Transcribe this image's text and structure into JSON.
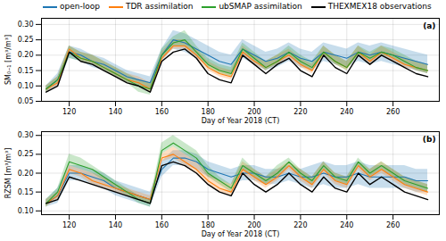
{
  "chart_data": [
    {
      "type": "line",
      "title": "(a)",
      "legend": "top-left",
      "grid": true,
      "x_label": "Day of Year 2018 (CT)",
      "y_label": "SM₀₋₁ [m³/m³]",
      "xlim": [
        108,
        280
      ],
      "xticks": [
        120,
        140,
        160,
        180,
        200,
        220,
        240,
        260
      ],
      "ylim": [
        0.05,
        0.32
      ],
      "yticks": [
        {
          "value": 0.05,
          "label": "0.05"
        },
        {
          "value": 0.1,
          "label": "0.10"
        },
        {
          "value": 0.15,
          "label": "0.15"
        },
        {
          "value": 0.2,
          "label": "0.20"
        },
        {
          "value": 0.25,
          "label": "0.25"
        },
        {
          "value": 0.3,
          "label": "0.30"
        }
      ],
      "x": [
        110,
        115,
        120,
        125,
        130,
        135,
        140,
        145,
        150,
        155,
        160,
        165,
        170,
        175,
        180,
        185,
        190,
        195,
        200,
        205,
        210,
        215,
        220,
        225,
        230,
        235,
        240,
        245,
        250,
        255,
        260,
        265,
        270,
        275
      ],
      "series": [
        {
          "name": "open-loop",
          "color": "#1f77b4",
          "values": [
            0.09,
            0.12,
            0.21,
            0.2,
            0.18,
            0.17,
            0.15,
            0.13,
            0.12,
            0.11,
            0.2,
            0.25,
            0.24,
            0.22,
            0.2,
            0.18,
            0.17,
            0.22,
            0.2,
            0.18,
            0.19,
            0.21,
            0.19,
            0.18,
            0.21,
            0.2,
            0.19,
            0.21,
            0.2,
            0.21,
            0.2,
            0.19,
            0.18,
            0.17
          ],
          "lower": [
            0.08,
            0.1,
            0.19,
            0.18,
            0.16,
            0.15,
            0.13,
            0.11,
            0.1,
            0.09,
            0.18,
            0.22,
            0.21,
            0.19,
            0.17,
            0.15,
            0.14,
            0.19,
            0.17,
            0.15,
            0.16,
            0.18,
            0.16,
            0.15,
            0.18,
            0.17,
            0.16,
            0.18,
            0.17,
            0.18,
            0.17,
            0.16,
            0.15,
            0.14
          ],
          "upper": [
            0.1,
            0.14,
            0.23,
            0.22,
            0.2,
            0.19,
            0.17,
            0.15,
            0.14,
            0.13,
            0.22,
            0.28,
            0.27,
            0.25,
            0.23,
            0.21,
            0.2,
            0.25,
            0.23,
            0.21,
            0.22,
            0.24,
            0.22,
            0.21,
            0.24,
            0.23,
            0.22,
            0.24,
            0.23,
            0.24,
            0.23,
            0.22,
            0.21,
            0.2
          ]
        },
        {
          "name": "TDR assimilation",
          "color": "#ff7f0e",
          "values": [
            0.09,
            0.11,
            0.22,
            0.19,
            0.18,
            0.16,
            0.14,
            0.12,
            0.11,
            0.09,
            0.19,
            0.23,
            0.23,
            0.2,
            0.16,
            0.14,
            0.13,
            0.21,
            0.18,
            0.16,
            0.18,
            0.2,
            0.17,
            0.15,
            0.21,
            0.18,
            0.16,
            0.21,
            0.18,
            0.21,
            0.19,
            0.17,
            0.16,
            0.15
          ],
          "lower": [
            0.08,
            0.1,
            0.21,
            0.18,
            0.17,
            0.15,
            0.13,
            0.11,
            0.1,
            0.08,
            0.18,
            0.22,
            0.22,
            0.19,
            0.15,
            0.13,
            0.12,
            0.2,
            0.17,
            0.15,
            0.17,
            0.19,
            0.16,
            0.14,
            0.2,
            0.17,
            0.15,
            0.2,
            0.17,
            0.2,
            0.18,
            0.16,
            0.15,
            0.14
          ],
          "upper": [
            0.1,
            0.13,
            0.23,
            0.21,
            0.2,
            0.18,
            0.16,
            0.14,
            0.13,
            0.11,
            0.21,
            0.25,
            0.25,
            0.22,
            0.18,
            0.16,
            0.15,
            0.23,
            0.2,
            0.18,
            0.2,
            0.22,
            0.19,
            0.17,
            0.23,
            0.2,
            0.18,
            0.23,
            0.2,
            0.23,
            0.21,
            0.19,
            0.18,
            0.17
          ]
        },
        {
          "name": "ubSMAP assimilation",
          "color": "#2ca02c",
          "values": [
            0.09,
            0.12,
            0.21,
            0.19,
            0.18,
            0.16,
            0.14,
            0.12,
            0.1,
            0.09,
            0.2,
            0.24,
            0.25,
            0.21,
            0.17,
            0.15,
            0.14,
            0.22,
            0.19,
            0.16,
            0.18,
            0.21,
            0.18,
            0.16,
            0.21,
            0.18,
            0.16,
            0.21,
            0.19,
            0.21,
            0.2,
            0.18,
            0.16,
            0.15
          ],
          "lower": [
            0.08,
            0.11,
            0.19,
            0.18,
            0.17,
            0.15,
            0.13,
            0.11,
            0.08,
            0.07,
            0.19,
            0.23,
            0.23,
            0.2,
            0.16,
            0.14,
            0.13,
            0.21,
            0.18,
            0.15,
            0.17,
            0.2,
            0.17,
            0.15,
            0.2,
            0.17,
            0.15,
            0.2,
            0.18,
            0.2,
            0.19,
            0.17,
            0.15,
            0.14
          ],
          "upper": [
            0.1,
            0.13,
            0.23,
            0.21,
            0.2,
            0.18,
            0.16,
            0.14,
            0.12,
            0.11,
            0.22,
            0.26,
            0.28,
            0.23,
            0.19,
            0.17,
            0.16,
            0.24,
            0.21,
            0.18,
            0.2,
            0.23,
            0.2,
            0.18,
            0.23,
            0.2,
            0.18,
            0.23,
            0.21,
            0.23,
            0.22,
            0.2,
            0.18,
            0.17
          ]
        },
        {
          "name": "THEXMEX18 observations",
          "color": "#000000",
          "values": [
            0.08,
            0.1,
            0.21,
            0.18,
            0.17,
            0.15,
            0.13,
            0.11,
            0.1,
            0.08,
            0.18,
            0.21,
            0.22,
            0.19,
            0.14,
            0.12,
            0.11,
            0.2,
            0.17,
            0.14,
            0.17,
            0.19,
            0.15,
            0.13,
            0.2,
            0.16,
            0.14,
            0.2,
            0.17,
            0.2,
            0.18,
            0.16,
            0.14,
            0.13
          ]
        }
      ]
    },
    {
      "type": "line",
      "title": "(b)",
      "grid": true,
      "x_label": "Day of Year 2018 (CT)",
      "y_label": "RZSM [m³/m³]",
      "xlim": [
        108,
        280
      ],
      "xticks": [
        120,
        140,
        160,
        180,
        200,
        220,
        240,
        260
      ],
      "ylim": [
        0.09,
        0.31
      ],
      "yticks": [
        {
          "value": 0.1,
          "label": "0.10"
        },
        {
          "value": 0.15,
          "label": "0.15"
        },
        {
          "value": 0.2,
          "label": "0.20"
        },
        {
          "value": 0.25,
          "label": "0.25"
        },
        {
          "value": 0.3,
          "label": "0.30"
        }
      ],
      "x": [
        110,
        115,
        120,
        125,
        130,
        135,
        140,
        145,
        150,
        155,
        160,
        165,
        170,
        175,
        180,
        185,
        190,
        195,
        200,
        205,
        210,
        215,
        220,
        225,
        230,
        235,
        240,
        245,
        250,
        255,
        260,
        265,
        270,
        275
      ],
      "series": [
        {
          "name": "open-loop",
          "color": "#1f77b4",
          "values": [
            0.12,
            0.14,
            0.2,
            0.2,
            0.19,
            0.18,
            0.16,
            0.15,
            0.14,
            0.13,
            0.21,
            0.24,
            0.24,
            0.23,
            0.21,
            0.2,
            0.19,
            0.2,
            0.2,
            0.19,
            0.19,
            0.2,
            0.19,
            0.19,
            0.2,
            0.19,
            0.19,
            0.2,
            0.19,
            0.19,
            0.19,
            0.19,
            0.18,
            0.18
          ],
          "lower": [
            0.11,
            0.12,
            0.18,
            0.18,
            0.17,
            0.16,
            0.14,
            0.13,
            0.12,
            0.11,
            0.19,
            0.22,
            0.22,
            0.21,
            0.19,
            0.18,
            0.17,
            0.18,
            0.18,
            0.17,
            0.17,
            0.18,
            0.17,
            0.16,
            0.17,
            0.16,
            0.16,
            0.17,
            0.16,
            0.16,
            0.16,
            0.16,
            0.15,
            0.15
          ],
          "upper": [
            0.13,
            0.16,
            0.22,
            0.22,
            0.21,
            0.2,
            0.18,
            0.17,
            0.16,
            0.15,
            0.23,
            0.26,
            0.26,
            0.25,
            0.23,
            0.22,
            0.21,
            0.22,
            0.22,
            0.21,
            0.21,
            0.22,
            0.21,
            0.22,
            0.23,
            0.22,
            0.22,
            0.23,
            0.22,
            0.22,
            0.22,
            0.22,
            0.21,
            0.21
          ]
        },
        {
          "name": "TDR assimilation",
          "color": "#ff7f0e",
          "values": [
            0.12,
            0.14,
            0.21,
            0.2,
            0.18,
            0.17,
            0.16,
            0.15,
            0.14,
            0.13,
            0.24,
            0.25,
            0.23,
            0.21,
            0.18,
            0.16,
            0.15,
            0.21,
            0.19,
            0.17,
            0.19,
            0.22,
            0.19,
            0.17,
            0.21,
            0.18,
            0.17,
            0.22,
            0.19,
            0.21,
            0.19,
            0.17,
            0.16,
            0.15
          ],
          "lower": [
            0.11,
            0.13,
            0.2,
            0.19,
            0.17,
            0.16,
            0.15,
            0.14,
            0.13,
            0.12,
            0.23,
            0.24,
            0.22,
            0.2,
            0.17,
            0.15,
            0.14,
            0.2,
            0.18,
            0.16,
            0.18,
            0.21,
            0.18,
            0.16,
            0.2,
            0.17,
            0.16,
            0.21,
            0.18,
            0.2,
            0.18,
            0.16,
            0.15,
            0.14
          ],
          "upper": [
            0.13,
            0.15,
            0.22,
            0.21,
            0.2,
            0.19,
            0.17,
            0.16,
            0.15,
            0.14,
            0.25,
            0.27,
            0.25,
            0.23,
            0.2,
            0.18,
            0.17,
            0.23,
            0.21,
            0.19,
            0.21,
            0.23,
            0.21,
            0.19,
            0.23,
            0.2,
            0.19,
            0.23,
            0.21,
            0.23,
            0.21,
            0.19,
            0.18,
            0.17
          ]
        },
        {
          "name": "ubSMAP assimilation",
          "color": "#2ca02c",
          "values": [
            0.12,
            0.15,
            0.23,
            0.22,
            0.21,
            0.19,
            0.17,
            0.15,
            0.13,
            0.12,
            0.26,
            0.28,
            0.26,
            0.24,
            0.2,
            0.18,
            0.16,
            0.22,
            0.2,
            0.18,
            0.2,
            0.23,
            0.2,
            0.18,
            0.22,
            0.19,
            0.18,
            0.23,
            0.2,
            0.22,
            0.2,
            0.18,
            0.17,
            0.16
          ],
          "lower": [
            0.11,
            0.14,
            0.22,
            0.21,
            0.2,
            0.18,
            0.16,
            0.14,
            0.12,
            0.11,
            0.25,
            0.27,
            0.25,
            0.23,
            0.19,
            0.17,
            0.15,
            0.21,
            0.19,
            0.17,
            0.19,
            0.22,
            0.19,
            0.17,
            0.21,
            0.18,
            0.17,
            0.22,
            0.19,
            0.21,
            0.19,
            0.17,
            0.16,
            0.15
          ],
          "upper": [
            0.13,
            0.16,
            0.25,
            0.24,
            0.22,
            0.2,
            0.18,
            0.16,
            0.14,
            0.13,
            0.28,
            0.3,
            0.28,
            0.26,
            0.22,
            0.19,
            0.17,
            0.24,
            0.21,
            0.19,
            0.22,
            0.24,
            0.21,
            0.19,
            0.23,
            0.2,
            0.19,
            0.24,
            0.21,
            0.23,
            0.21,
            0.19,
            0.18,
            0.17
          ]
        },
        {
          "name": "THEXMEX18 observations",
          "color": "#000000",
          "values": [
            0.12,
            0.13,
            0.19,
            0.18,
            0.17,
            0.16,
            0.15,
            0.14,
            0.13,
            0.12,
            0.22,
            0.23,
            0.22,
            0.2,
            0.17,
            0.15,
            0.14,
            0.2,
            0.17,
            0.15,
            0.17,
            0.2,
            0.17,
            0.15,
            0.19,
            0.16,
            0.15,
            0.2,
            0.17,
            0.19,
            0.17,
            0.15,
            0.14,
            0.13
          ]
        }
      ]
    }
  ]
}
